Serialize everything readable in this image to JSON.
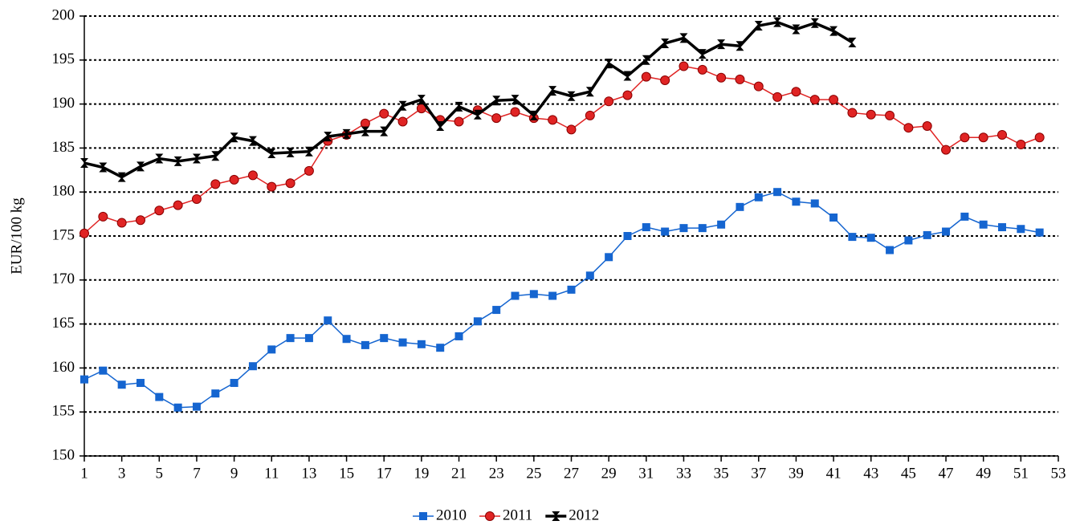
{
  "chart_data": {
    "type": "line",
    "y_label": "EUR/100 kg",
    "x": [
      1,
      2,
      3,
      4,
      5,
      6,
      7,
      8,
      9,
      10,
      11,
      12,
      13,
      14,
      15,
      16,
      17,
      18,
      19,
      20,
      21,
      22,
      23,
      24,
      25,
      26,
      27,
      28,
      29,
      30,
      31,
      32,
      33,
      34,
      35,
      36,
      37,
      38,
      39,
      40,
      41,
      42,
      43,
      44,
      45,
      46,
      47,
      48,
      49,
      50,
      51,
      52
    ],
    "xlim": [
      1,
      53
    ],
    "xticks": [
      1,
      3,
      5,
      7,
      9,
      11,
      13,
      15,
      17,
      19,
      21,
      23,
      25,
      27,
      29,
      31,
      33,
      35,
      37,
      39,
      41,
      43,
      45,
      47,
      49,
      51,
      53
    ],
    "ylim": [
      150,
      200
    ],
    "yticks": [
      150,
      155,
      160,
      165,
      170,
      175,
      180,
      185,
      190,
      195,
      200
    ],
    "grid": true,
    "legend": "bottom",
    "series": [
      {
        "name": "2010",
        "color": "#1565d0",
        "marker": "square",
        "values": [
          158.7,
          159.7,
          158.1,
          158.3,
          156.7,
          155.5,
          155.6,
          157.1,
          158.3,
          160.2,
          162.1,
          163.4,
          163.4,
          165.4,
          163.3,
          162.6,
          163.4,
          162.9,
          162.7,
          162.3,
          163.6,
          165.3,
          166.6,
          168.2,
          168.4,
          168.2,
          168.9,
          170.5,
          172.6,
          175.0,
          176.0,
          175.5,
          175.9,
          175.9,
          176.3,
          178.3,
          179.4,
          180.0,
          178.9,
          178.7,
          177.1,
          174.9,
          174.8,
          173.4,
          174.5,
          175.1,
          175.5,
          177.2,
          176.3,
          176.0,
          175.8,
          175.4
        ]
      },
      {
        "name": "2011",
        "color": "#e02424",
        "marker": "circle",
        "values": [
          175.3,
          177.2,
          176.5,
          176.8,
          177.9,
          178.5,
          179.2,
          180.9,
          181.4,
          181.9,
          180.6,
          181.0,
          182.4,
          185.8,
          186.5,
          187.8,
          188.9,
          188.0,
          189.5,
          188.2,
          188.0,
          189.3,
          188.4,
          189.1,
          188.4,
          188.2,
          187.1,
          188.7,
          190.3,
          191.0,
          193.1,
          192.7,
          194.3,
          193.9,
          193.0,
          192.8,
          192.0,
          190.8,
          191.4,
          190.5,
          190.5,
          189.0,
          188.8,
          188.7,
          187.3,
          187.5,
          184.8,
          186.2,
          186.2,
          186.5,
          185.4,
          186.2
        ]
      },
      {
        "name": "2012",
        "color": "#000000",
        "marker": "hourglass",
        "values": [
          183.3,
          182.8,
          181.7,
          182.9,
          183.8,
          183.5,
          183.8,
          184.1,
          186.2,
          185.8,
          184.4,
          184.5,
          184.6,
          186.3,
          186.6,
          186.9,
          186.9,
          189.8,
          190.5,
          187.5,
          189.7,
          188.8,
          190.4,
          190.5,
          188.7,
          191.5,
          190.9,
          191.4,
          194.6,
          193.2,
          195.0,
          196.9,
          197.5,
          195.7,
          196.8,
          196.6,
          198.9,
          199.3,
          198.5,
          199.2,
          198.3,
          197.0,
          null,
          null,
          null,
          null,
          null,
          null,
          null,
          null,
          null,
          null
        ]
      }
    ]
  }
}
